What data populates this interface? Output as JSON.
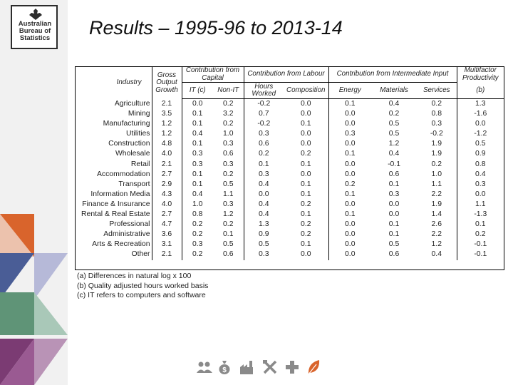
{
  "header": {
    "logo_lines": [
      "Australian",
      "Bureau of",
      "Statistics"
    ],
    "title": "Results – 1995-96 to 2013-14"
  },
  "table": {
    "headers": {
      "industry": "Industry",
      "gross_output_growth": "Gross Output Growth",
      "contribution_capital": "Contribution from Capital",
      "contribution_labour": "Contribution from Labour",
      "contribution_intermediate": "Contribution from Intermediate Input",
      "mfp": "Multifactor Productivity",
      "it": "IT (c)",
      "non_it": "Non-IT",
      "hours_worked": "Hours Worked",
      "composition": "Composition",
      "energy": "Energy",
      "materials": "Materials",
      "services": "Services",
      "mfp_note": "(b)"
    },
    "rows": [
      {
        "industry": "Agriculture",
        "values": [
          "2.1",
          "0.0",
          "0.2",
          "-0.2",
          "0.0",
          "0.1",
          "0.4",
          "0.2",
          "1.3"
        ]
      },
      {
        "industry": "Mining",
        "values": [
          "3.5",
          "0.1",
          "3.2",
          "0.7",
          "0.0",
          "0.0",
          "0.2",
          "0.8",
          "-1.6"
        ]
      },
      {
        "industry": "Manufacturing",
        "values": [
          "1.2",
          "0.1",
          "0.2",
          "-0.2",
          "0.1",
          "0.0",
          "0.5",
          "0.3",
          "0.0"
        ]
      },
      {
        "industry": "Utilities",
        "values": [
          "1.2",
          "0.4",
          "1.0",
          "0.3",
          "0.0",
          "0.3",
          "0.5",
          "-0.2",
          "-1.2"
        ]
      },
      {
        "industry": "Construction",
        "values": [
          "4.8",
          "0.1",
          "0.3",
          "0.6",
          "0.0",
          "0.0",
          "1.2",
          "1.9",
          "0.5"
        ]
      },
      {
        "industry": "Wholesale",
        "values": [
          "4.0",
          "0.3",
          "0.6",
          "0.2",
          "0.2",
          "0.1",
          "0.4",
          "1.9",
          "0.9"
        ]
      },
      {
        "industry": "Retail",
        "values": [
          "2.1",
          "0.3",
          "0.3",
          "0.1",
          "0.1",
          "0.0",
          "-0.1",
          "0.2",
          "0.8"
        ]
      },
      {
        "industry": "Accommodation",
        "values": [
          "2.7",
          "0.1",
          "0.2",
          "0.3",
          "0.0",
          "0.0",
          "0.6",
          "1.0",
          "0.4"
        ]
      },
      {
        "industry": "Transport",
        "values": [
          "2.9",
          "0.1",
          "0.5",
          "0.4",
          "0.1",
          "0.2",
          "0.1",
          "1.1",
          "0.3"
        ]
      },
      {
        "industry": "Information Media",
        "values": [
          "4.3",
          "0.4",
          "1.1",
          "0.0",
          "0.1",
          "0.1",
          "0.3",
          "2.2",
          "0.0"
        ]
      },
      {
        "industry": "Finance & Insurance",
        "values": [
          "4.0",
          "1.0",
          "0.3",
          "0.4",
          "0.2",
          "0.0",
          "0.0",
          "1.9",
          "1.1"
        ]
      },
      {
        "industry": "Rental & Real Estate",
        "values": [
          "2.7",
          "0.8",
          "1.2",
          "0.4",
          "0.1",
          "0.1",
          "0.0",
          "1.4",
          "-1.3"
        ]
      },
      {
        "industry": "Professional",
        "values": [
          "4.7",
          "0.2",
          "0.2",
          "1.3",
          "0.2",
          "0.0",
          "0.1",
          "2.6",
          "0.1"
        ]
      },
      {
        "industry": "Administrative",
        "values": [
          "3.6",
          "0.2",
          "0.1",
          "0.9",
          "0.2",
          "0.0",
          "0.1",
          "2.2",
          "0.2"
        ]
      },
      {
        "industry": "Arts & Recreation",
        "values": [
          "3.1",
          "0.3",
          "0.5",
          "0.5",
          "0.1",
          "0.0",
          "0.5",
          "1.2",
          "-0.1"
        ]
      },
      {
        "industry": "Other",
        "values": [
          "2.1",
          "0.2",
          "0.6",
          "0.3",
          "0.0",
          "0.0",
          "0.6",
          "0.4",
          "-0.1"
        ]
      }
    ]
  },
  "notes": [
    "(a) Differences in natural log x 100",
    "(b) Quality adjusted hours worked basis",
    "(c) IT refers to computers and software"
  ],
  "decor": {
    "triangle_colors": [
      "#d9642c",
      "#4a5d96",
      "#5f9477",
      "#a9c8b8",
      "#7b3b73",
      "#b993b6"
    ],
    "bottom_icons": [
      "people-icon",
      "money-bag-icon",
      "factory-icon",
      "tools-icon",
      "plus-icon",
      "leaf-icon"
    ],
    "icon_color": "#8a8a8a",
    "leaf_color": "#d9642c"
  }
}
